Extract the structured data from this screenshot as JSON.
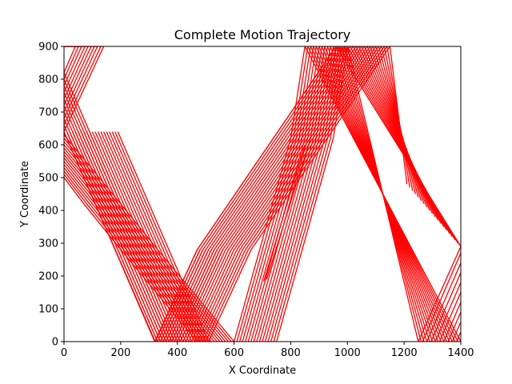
{
  "chart_data": {
    "type": "line",
    "title": "Complete Motion Trajectory",
    "xlabel": "X Coordinate",
    "ylabel": "Y Coordinate",
    "xlim": [
      0,
      1400
    ],
    "ylim": [
      0,
      900
    ],
    "xticks": [
      0,
      200,
      400,
      600,
      800,
      1000,
      1200,
      1400
    ],
    "yticks": [
      0,
      100,
      200,
      300,
      400,
      500,
      600,
      700,
      800,
      900
    ],
    "grid": false,
    "legend": "none",
    "line_color": "#ff0000",
    "series": [
      {
        "x": [
          0,
          140,
          0
        ],
        "y": [
          640,
          900,
          900
        ]
      },
      {
        "x": [
          0,
          130,
          0
        ],
        "y": [
          660,
          900,
          900
        ]
      },
      {
        "x": [
          0,
          118,
          0
        ],
        "y": [
          680,
          900,
          900
        ]
      },
      {
        "x": [
          0,
          107,
          0
        ],
        "y": [
          700,
          900,
          900
        ]
      },
      {
        "x": [
          0,
          96,
          0
        ],
        "y": [
          720,
          900,
          900
        ]
      },
      {
        "x": [
          0,
          85,
          0
        ],
        "y": [
          740,
          900,
          900
        ]
      },
      {
        "x": [
          0,
          74,
          0
        ],
        "y": [
          760,
          900,
          900
        ]
      },
      {
        "x": [
          0,
          62,
          0
        ],
        "y": [
          780,
          900,
          900
        ]
      },
      {
        "x": [
          0,
          51,
          0
        ],
        "y": [
          800,
          900,
          900
        ]
      },
      {
        "x": [
          0,
          40,
          0
        ],
        "y": [
          820,
          900,
          900
        ]
      },
      {
        "x": [
          0,
          320,
          470,
          960,
          1400
        ],
        "y": [
          640,
          0,
          280,
          900,
          290
        ]
      },
      {
        "x": [
          10,
          330,
          480,
          970,
          1390
        ],
        "y": [
          640,
          0,
          280,
          900,
          300
        ]
      },
      {
        "x": [
          20,
          340,
          490,
          980,
          1380
        ],
        "y": [
          640,
          0,
          280,
          900,
          310
        ]
      },
      {
        "x": [
          30,
          350,
          500,
          990,
          1370
        ],
        "y": [
          640,
          0,
          280,
          900,
          320
        ]
      },
      {
        "x": [
          40,
          360,
          510,
          1000,
          1360
        ],
        "y": [
          640,
          0,
          280,
          900,
          330
        ]
      },
      {
        "x": [
          50,
          370,
          520,
          1010,
          1350
        ],
        "y": [
          640,
          0,
          280,
          900,
          340
        ]
      },
      {
        "x": [
          60,
          380,
          530,
          1020,
          1340
        ],
        "y": [
          640,
          0,
          280,
          900,
          350
        ]
      },
      {
        "x": [
          70,
          390,
          540,
          1030,
          1330
        ],
        "y": [
          640,
          0,
          280,
          900,
          360
        ]
      },
      {
        "x": [
          80,
          400,
          550,
          1040,
          1320
        ],
        "y": [
          640,
          0,
          280,
          900,
          370
        ]
      },
      {
        "x": [
          90,
          410,
          560,
          1050,
          1310
        ],
        "y": [
          640,
          0,
          280,
          900,
          380
        ]
      },
      {
        "x": [
          100,
          420,
          570,
          1060,
          1300
        ],
        "y": [
          640,
          0,
          280,
          900,
          390
        ]
      },
      {
        "x": [
          110,
          430,
          580,
          1070,
          1290
        ],
        "y": [
          640,
          0,
          280,
          900,
          400
        ]
      },
      {
        "x": [
          120,
          440,
          590,
          1080,
          1280
        ],
        "y": [
          640,
          0,
          280,
          900,
          410
        ]
      },
      {
        "x": [
          130,
          450,
          600,
          1090,
          1270
        ],
        "y": [
          640,
          0,
          280,
          900,
          420
        ]
      },
      {
        "x": [
          140,
          460,
          610,
          1100,
          1260
        ],
        "y": [
          640,
          0,
          280,
          900,
          430
        ]
      },
      {
        "x": [
          150,
          470,
          620,
          1110,
          1250
        ],
        "y": [
          640,
          0,
          280,
          900,
          440
        ]
      },
      {
        "x": [
          160,
          480,
          630,
          1120,
          1240
        ],
        "y": [
          640,
          0,
          280,
          900,
          450
        ]
      },
      {
        "x": [
          170,
          490,
          640,
          1130,
          1230
        ],
        "y": [
          640,
          0,
          280,
          900,
          460
        ]
      },
      {
        "x": [
          180,
          500,
          650,
          1140,
          1220
        ],
        "y": [
          640,
          0,
          280,
          900,
          470
        ]
      },
      {
        "x": [
          190,
          510,
          660,
          1150,
          1210
        ],
        "y": [
          640,
          0,
          280,
          900,
          480
        ]
      },
      {
        "x": [
          0,
          322,
          470,
          960,
          1400
        ],
        "y": [
          640,
          0,
          280,
          900,
          290
        ]
      },
      {
        "x": [
          0,
          330,
          480
        ],
        "y": [
          660,
          0,
          280
        ]
      },
      {
        "x": [
          0,
          340,
          490
        ],
        "y": [
          680,
          0,
          280
        ]
      },
      {
        "x": [
          0,
          350,
          500
        ],
        "y": [
          700,
          0,
          280
        ]
      },
      {
        "x": [
          0,
          360,
          510
        ],
        "y": [
          720,
          0,
          280
        ]
      },
      {
        "x": [
          0,
          370,
          520
        ],
        "y": [
          740,
          0,
          280
        ]
      },
      {
        "x": [
          0,
          380,
          530
        ],
        "y": [
          760,
          0,
          280
        ]
      },
      {
        "x": [
          0,
          390,
          540
        ],
        "y": [
          780,
          0,
          280
        ]
      },
      {
        "x": [
          0,
          400,
          550
        ],
        "y": [
          800,
          0,
          280
        ]
      },
      {
        "x": [
          0,
          410,
          560
        ],
        "y": [
          820,
          0,
          280
        ]
      },
      {
        "x": [
          600,
          340,
          200,
          0
        ],
        "y": [
          0,
          270,
          420,
          630
        ]
      },
      {
        "x": [
          590,
          330,
          190,
          0
        ],
        "y": [
          0,
          270,
          420,
          620
        ]
      },
      {
        "x": [
          580,
          320,
          180,
          0
        ],
        "y": [
          0,
          270,
          420,
          610
        ]
      },
      {
        "x": [
          570,
          310,
          170,
          0
        ],
        "y": [
          0,
          270,
          420,
          600
        ]
      },
      {
        "x": [
          560,
          300,
          160,
          0
        ],
        "y": [
          0,
          270,
          420,
          590
        ]
      },
      {
        "x": [
          550,
          290,
          150,
          0
        ],
        "y": [
          0,
          270,
          420,
          580
        ]
      },
      {
        "x": [
          540,
          280,
          140,
          0
        ],
        "y": [
          0,
          270,
          420,
          570
        ]
      },
      {
        "x": [
          530,
          270,
          130,
          0
        ],
        "y": [
          0,
          270,
          420,
          560
        ]
      },
      {
        "x": [
          520,
          260,
          120,
          0
        ],
        "y": [
          0,
          270,
          420,
          550
        ]
      },
      {
        "x": [
          510,
          250,
          110,
          0
        ],
        "y": [
          0,
          270,
          420,
          540
        ]
      },
      {
        "x": [
          500,
          240,
          100,
          0
        ],
        "y": [
          0,
          270,
          420,
          530
        ]
      },
      {
        "x": [
          490,
          230,
          90,
          0
        ],
        "y": [
          0,
          270,
          420,
          520
        ]
      },
      {
        "x": [
          480,
          220,
          80,
          0
        ],
        "y": [
          0,
          270,
          420,
          510
        ]
      },
      {
        "x": [
          470,
          210,
          70,
          0
        ],
        "y": [
          0,
          270,
          420,
          500
        ]
      },
      {
        "x": [
          600,
          800,
          850,
          1400
        ],
        "y": [
          0,
          620,
          900,
          0
        ]
      },
      {
        "x": [
          610,
          810,
          860,
          1390
        ],
        "y": [
          0,
          620,
          900,
          0
        ]
      },
      {
        "x": [
          620,
          820,
          870,
          1380
        ],
        "y": [
          0,
          620,
          900,
          0
        ]
      },
      {
        "x": [
          630,
          830,
          880,
          1370
        ],
        "y": [
          0,
          620,
          900,
          0
        ]
      },
      {
        "x": [
          640,
          840,
          890,
          1360
        ],
        "y": [
          0,
          620,
          900,
          0
        ]
      },
      {
        "x": [
          650,
          850,
          900,
          1350
        ],
        "y": [
          0,
          620,
          900,
          0
        ]
      },
      {
        "x": [
          660,
          860,
          910,
          1340
        ],
        "y": [
          0,
          620,
          900,
          0
        ]
      },
      {
        "x": [
          670,
          870,
          920,
          1330
        ],
        "y": [
          0,
          620,
          900,
          0
        ]
      },
      {
        "x": [
          680,
          880,
          930,
          1320
        ],
        "y": [
          0,
          620,
          900,
          0
        ]
      },
      {
        "x": [
          690,
          890,
          940,
          1310
        ],
        "y": [
          0,
          620,
          900,
          0
        ]
      },
      {
        "x": [
          700,
          900,
          950,
          1300
        ],
        "y": [
          0,
          620,
          900,
          0
        ]
      },
      {
        "x": [
          710,
          910,
          960,
          1290
        ],
        "y": [
          0,
          620,
          900,
          0
        ]
      },
      {
        "x": [
          720,
          920,
          970,
          1280
        ],
        "y": [
          0,
          620,
          900,
          0
        ]
      },
      {
        "x": [
          730,
          930,
          980,
          1270
        ],
        "y": [
          0,
          620,
          900,
          0
        ]
      },
      {
        "x": [
          740,
          940,
          990,
          1260
        ],
        "y": [
          0,
          620,
          900,
          0
        ]
      },
      {
        "x": [
          750,
          950,
          1000,
          1250
        ],
        "y": [
          0,
          620,
          900,
          0
        ]
      },
      {
        "x": [
          705,
          850
        ],
        "y": [
          185,
          600
        ]
      },
      {
        "x": [
          715,
          870
        ],
        "y": [
          190,
          620
        ]
      },
      {
        "x": [
          1250,
          1400
        ],
        "y": [
          0,
          290
        ]
      },
      {
        "x": [
          1265,
          1400
        ],
        "y": [
          0,
          270
        ]
      },
      {
        "x": [
          1280,
          1400
        ],
        "y": [
          0,
          240
        ]
      },
      {
        "x": [
          1295,
          1400
        ],
        "y": [
          0,
          210
        ]
      },
      {
        "x": [
          1310,
          1400
        ],
        "y": [
          0,
          180
        ]
      },
      {
        "x": [
          1325,
          1400
        ],
        "y": [
          0,
          150
        ]
      },
      {
        "x": [
          1340,
          1400
        ],
        "y": [
          0,
          120
        ]
      },
      {
        "x": [
          1355,
          1400
        ],
        "y": [
          0,
          90
        ]
      },
      {
        "x": [
          1370,
          1400
        ],
        "y": [
          0,
          60
        ]
      },
      {
        "x": [
          1385,
          1400
        ],
        "y": [
          0,
          30
        ]
      }
    ]
  }
}
